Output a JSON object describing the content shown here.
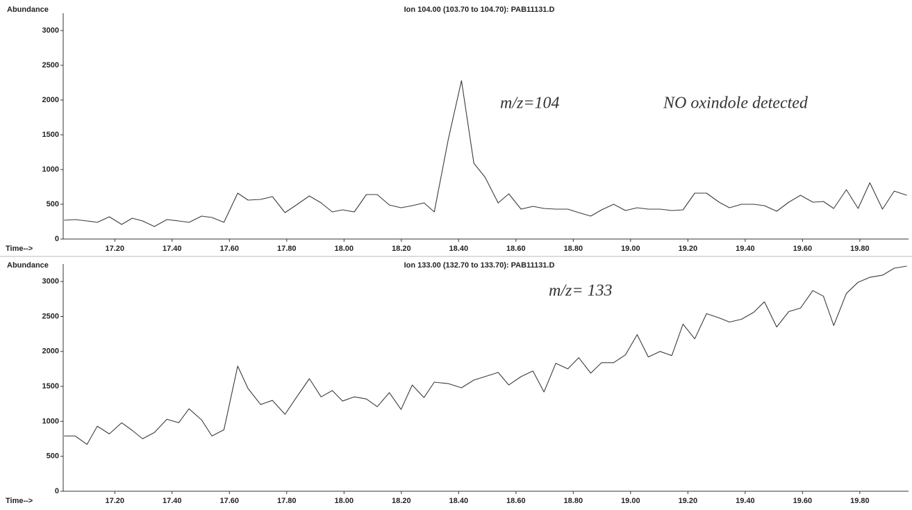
{
  "chart_data": [
    {
      "type": "line",
      "title": "Ion 104.00 (103.70 to 104.70): PAB11131.D",
      "y_label": "Abundance",
      "x_label": "Time-->",
      "annotations": [
        "m/z=104",
        "NO oxindole detected"
      ],
      "color": "#3a3a3a",
      "xlim": [
        17.02,
        19.97
      ],
      "xticks": [
        {
          "value": 17.2,
          "label": "17.20"
        },
        {
          "value": 17.4,
          "label": "17.40"
        },
        {
          "value": 17.6,
          "label": "17.60"
        },
        {
          "value": 17.8,
          "label": "17.80"
        },
        {
          "value": 18.0,
          "label": "18.00"
        },
        {
          "value": 18.2,
          "label": "18.20"
        },
        {
          "value": 18.4,
          "label": "18.40"
        },
        {
          "value": 18.6,
          "label": "18.60"
        },
        {
          "value": 18.8,
          "label": "18.80"
        },
        {
          "value": 19.0,
          "label": "19.00"
        },
        {
          "value": 19.2,
          "label": "19.20"
        },
        {
          "value": 19.4,
          "label": "19.40"
        },
        {
          "value": 19.6,
          "label": "19.60"
        },
        {
          "value": 19.8,
          "label": "19.80"
        }
      ],
      "ylim": [
        0,
        3250
      ],
      "yticks": [
        0,
        500,
        1000,
        1500,
        2000,
        2500,
        3000
      ],
      "x": [
        17.023,
        17.062,
        17.103,
        17.139,
        17.181,
        17.224,
        17.261,
        17.297,
        17.338,
        17.382,
        17.423,
        17.459,
        17.503,
        17.539,
        17.581,
        17.629,
        17.665,
        17.709,
        17.75,
        17.794,
        17.83,
        17.879,
        17.92,
        17.959,
        17.995,
        18.036,
        18.078,
        18.116,
        18.158,
        18.199,
        18.238,
        18.279,
        18.315,
        18.364,
        18.41,
        18.453,
        18.492,
        18.538,
        18.575,
        18.618,
        18.659,
        18.698,
        18.739,
        18.781,
        18.819,
        18.861,
        18.899,
        18.941,
        18.982,
        19.023,
        19.062,
        19.103,
        19.144,
        19.183,
        19.224,
        19.265,
        19.309,
        19.345,
        19.387,
        19.43,
        19.467,
        19.51,
        19.552,
        19.593,
        19.636,
        19.673,
        19.709,
        19.753,
        19.794,
        19.835,
        19.879,
        19.92,
        19.964
      ],
      "values": [
        270,
        280,
        260,
        240,
        320,
        210,
        300,
        260,
        180,
        280,
        260,
        240,
        330,
        310,
        240,
        660,
        560,
        570,
        610,
        380,
        480,
        620,
        520,
        390,
        420,
        390,
        640,
        640,
        490,
        450,
        480,
        520,
        390,
        1440,
        2280,
        1090,
        890,
        520,
        650,
        430,
        470,
        440,
        430,
        430,
        380,
        330,
        420,
        500,
        410,
        450,
        430,
        430,
        410,
        420,
        660,
        660,
        530,
        450,
        500,
        500,
        480,
        400,
        530,
        630,
        530,
        540,
        440,
        710,
        440,
        810,
        430,
        690,
        630
      ]
    },
    {
      "type": "line",
      "title": "Ion 133.00 (132.70 to 133.70): PAB11131.D",
      "y_label": "Abundance",
      "x_label": "Time-->",
      "annotations": [
        "m/z= 133"
      ],
      "color": "#3a3a3a",
      "xlim": [
        17.02,
        19.97
      ],
      "xticks": [
        {
          "value": 17.2,
          "label": "17.20"
        },
        {
          "value": 17.4,
          "label": "17.40"
        },
        {
          "value": 17.6,
          "label": "17.60"
        },
        {
          "value": 17.8,
          "label": "17.80"
        },
        {
          "value": 18.0,
          "label": "18.00"
        },
        {
          "value": 18.2,
          "label": "18.20"
        },
        {
          "value": 18.4,
          "label": "18.40"
        },
        {
          "value": 18.6,
          "label": "18.60"
        },
        {
          "value": 18.8,
          "label": "18.80"
        },
        {
          "value": 19.0,
          "label": "19.00"
        },
        {
          "value": 19.2,
          "label": "19.20"
        },
        {
          "value": 19.4,
          "label": "19.40"
        },
        {
          "value": 19.6,
          "label": "19.60"
        },
        {
          "value": 19.8,
          "label": "19.80"
        }
      ],
      "ylim": [
        0,
        3250
      ],
      "yticks": [
        0,
        500,
        1000,
        1500,
        2000,
        2500,
        3000
      ],
      "x": [
        17.023,
        17.062,
        17.103,
        17.139,
        17.181,
        17.224,
        17.261,
        17.297,
        17.338,
        17.382,
        17.423,
        17.459,
        17.503,
        17.539,
        17.581,
        17.629,
        17.665,
        17.709,
        17.75,
        17.794,
        17.83,
        17.879,
        17.92,
        17.959,
        17.995,
        18.036,
        18.078,
        18.116,
        18.158,
        18.199,
        18.238,
        18.279,
        18.315,
        18.364,
        18.41,
        18.453,
        18.492,
        18.538,
        18.575,
        18.618,
        18.659,
        18.698,
        18.739,
        18.781,
        18.819,
        18.861,
        18.899,
        18.941,
        18.982,
        19.023,
        19.062,
        19.103,
        19.144,
        19.183,
        19.224,
        19.265,
        19.309,
        19.345,
        19.387,
        19.43,
        19.467,
        19.51,
        19.552,
        19.593,
        19.636,
        19.673,
        19.709,
        19.753,
        19.794,
        19.835,
        19.879,
        19.92,
        19.964
      ],
      "values": [
        790,
        790,
        670,
        930,
        820,
        980,
        870,
        750,
        840,
        1030,
        980,
        1180,
        1020,
        790,
        880,
        1790,
        1470,
        1240,
        1300,
        1100,
        1320,
        1610,
        1350,
        1440,
        1290,
        1350,
        1320,
        1210,
        1410,
        1170,
        1520,
        1340,
        1560,
        1540,
        1480,
        1590,
        1640,
        1700,
        1520,
        1640,
        1720,
        1420,
        1830,
        1750,
        1910,
        1690,
        1840,
        1840,
        1950,
        2240,
        1920,
        2000,
        1940,
        2390,
        2180,
        2540,
        2480,
        2420,
        2460,
        2560,
        2710,
        2350,
        2570,
        2620,
        2870,
        2790,
        2370,
        2830,
        2990,
        3060,
        3090,
        3190,
        3220
      ]
    }
  ]
}
